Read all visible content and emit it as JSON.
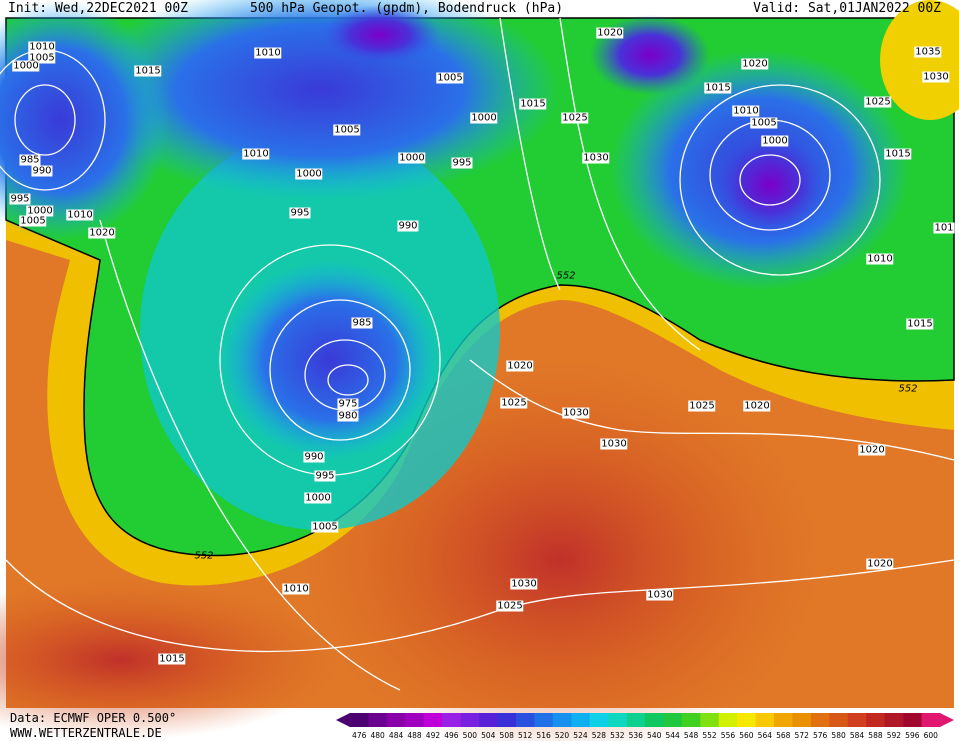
{
  "header": {
    "init": "Init: Wed,22DEC2021 00Z",
    "title": "500 hPa Geopot. (gpdm), Bodendruck (hPa)",
    "valid": "Valid: Sat,01JAN2022 00Z"
  },
  "footer": {
    "data": "Data: ECMWF OPER 0.500°",
    "site": "WWW.WETTERZENTRALE.DE"
  },
  "isobar_labels": [
    1010,
    1005,
    1000,
    1015,
    1010,
    1005,
    1020,
    1035,
    1030,
    1020,
    1015,
    1025,
    1010,
    1005,
    1000,
    1015,
    1010,
    1005,
    1000,
    1015,
    1025,
    1030,
    995,
    1000,
    1000,
    985,
    990,
    995,
    1000,
    1005,
    1010,
    1020,
    995,
    990,
    1010,
    101,
    1015,
    985,
    975,
    980,
    1020,
    1025,
    1030,
    1025,
    1020,
    1030,
    1020,
    990,
    995,
    1000,
    1005,
    1010,
    1030,
    1030,
    1020,
    1025,
    1015
  ],
  "height_labels": [
    552,
    552,
    552
  ],
  "colorbar": {
    "values": [
      476,
      480,
      484,
      488,
      492,
      496,
      500,
      504,
      508,
      512,
      516,
      520,
      524,
      528,
      532,
      536,
      540,
      544,
      548,
      552,
      556,
      560,
      564,
      568,
      572,
      576,
      580,
      584,
      588,
      592,
      596,
      600
    ],
    "colors": [
      "#4b0070",
      "#6a0090",
      "#8a00a8",
      "#a000c0",
      "#c000d8",
      "#9a20e8",
      "#7a20e0",
      "#5a20d8",
      "#3a30d8",
      "#2a50e0",
      "#2070e8",
      "#1890f0",
      "#10b0f0",
      "#10d0e8",
      "#10d8c0",
      "#10d090",
      "#10c860",
      "#20c840",
      "#40d020",
      "#80e010",
      "#d0f000",
      "#f8e800",
      "#f8c800",
      "#f0a800",
      "#e89000",
      "#e07010",
      "#d85818",
      "#d04020",
      "#c02820",
      "#b01828",
      "#a00830",
      "#e01870"
    ]
  }
}
